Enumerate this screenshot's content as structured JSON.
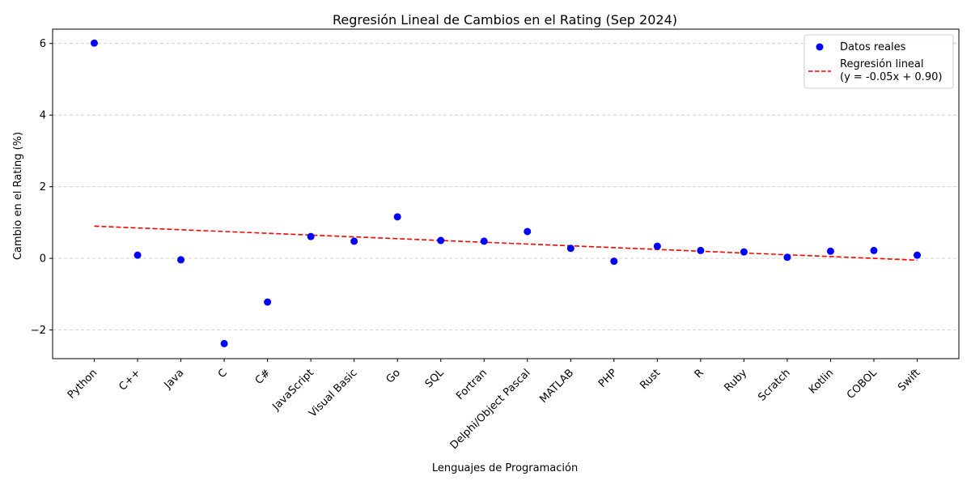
{
  "chart_data": {
    "type": "scatter",
    "title": "Regresión Lineal de Cambios en el Rating (Sep 2024)",
    "xlabel": "Lenguajes de Programación",
    "ylabel": "Cambio en el Rating (%)",
    "categories": [
      "Python",
      "C++",
      "Java",
      "C",
      "C#",
      "JavaScript",
      "Visual Basic",
      "Go",
      "SQL",
      "Fortran",
      "Delphi/Object Pascal",
      "MATLAB",
      "PHP",
      "Rust",
      "R",
      "Ruby",
      "Scratch",
      "Kotlin",
      "COBOL",
      "Swift"
    ],
    "series": [
      {
        "name": "Datos reales",
        "kind": "scatter",
        "color": "#0000ff",
        "values": [
          6.01,
          0.09,
          -0.04,
          -2.38,
          -1.22,
          0.61,
          0.48,
          1.16,
          0.5,
          0.48,
          0.75,
          0.28,
          -0.08,
          0.34,
          0.22,
          0.18,
          0.03,
          0.2,
          0.22,
          0.09
        ]
      },
      {
        "name": "Regresión lineal\n(y = -0.05x + 0.90)",
        "kind": "line",
        "color": "#ff0000",
        "slope": -0.05,
        "intercept": 0.9,
        "line_style": "dashed"
      }
    ],
    "ylim": [
      -2.8,
      6.4
    ],
    "yticks": [
      -2,
      0,
      2,
      4,
      6
    ],
    "ytick_labels": [
      "−2",
      "0",
      "2",
      "4",
      "6"
    ],
    "grid": "y-dashed",
    "legend_position": "top-right"
  }
}
